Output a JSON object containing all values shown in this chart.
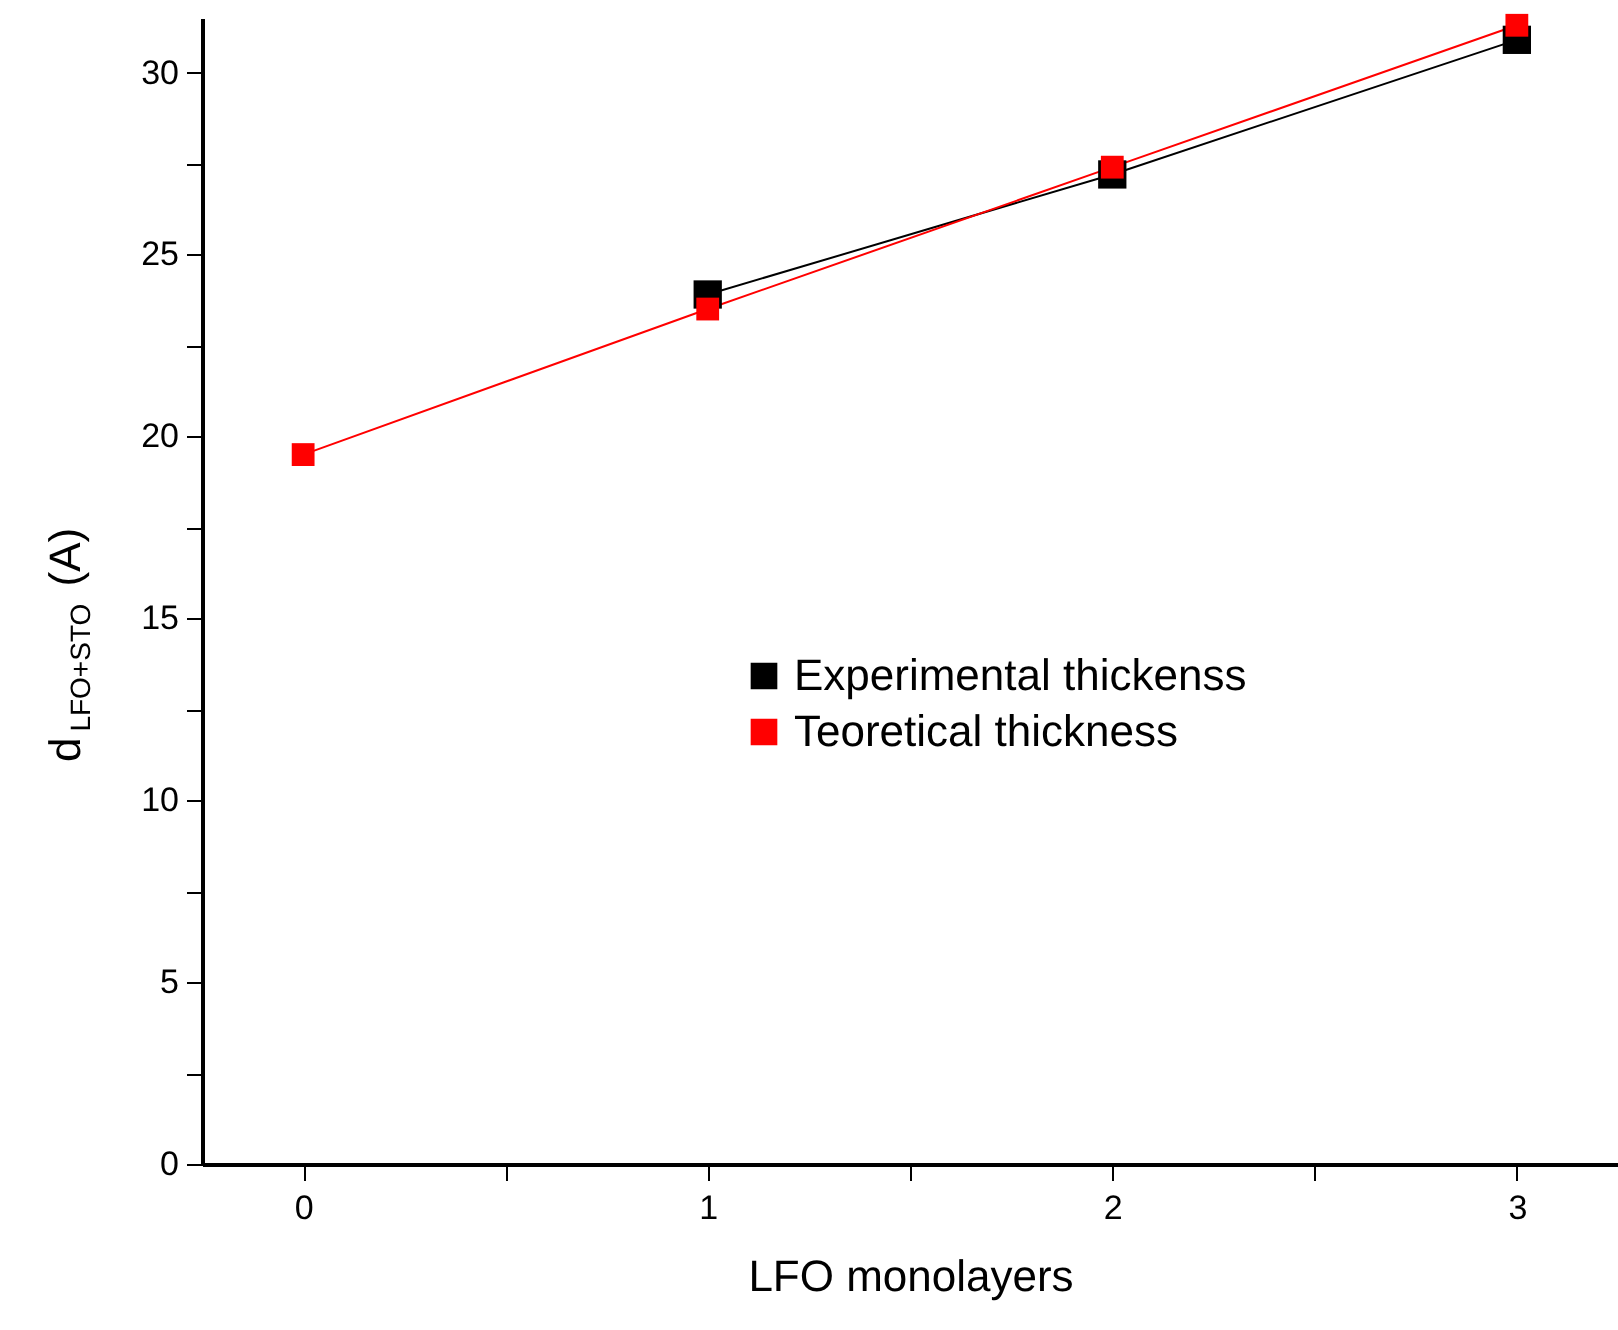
{
  "chart_data": {
    "type": "line",
    "xlabel": "LFO monolayers",
    "ylabel": "d$_{LFO+STO}$(A)",
    "series": [
      {
        "name": "Experimental thickenss",
        "color": "#000000",
        "x": [
          1,
          2,
          3
        ],
        "values": [
          23.9,
          27.2,
          30.9
        ]
      },
      {
        "name": "Teoretical thickness",
        "color": "#ff0000",
        "x": [
          0,
          1,
          2,
          3
        ],
        "values": [
          19.5,
          23.5,
          27.4,
          31.3
        ]
      }
    ],
    "xlim": [
      -0.25,
      3.25
    ],
    "xticks": [
      0,
      {
        "value": 0.5,
        "label": null
      },
      1,
      {
        "value": 1.5,
        "label": null
      },
      2,
      {
        "value": 2.5,
        "label": null
      },
      3
    ],
    "ylim": [
      0,
      31.5
    ],
    "yticks": [
      0,
      {
        "value": 2.5,
        "label": null
      },
      5,
      {
        "value": 7.5,
        "label": null
      },
      10,
      {
        "value": 12.5,
        "label": null
      },
      15,
      {
        "value": 17.5,
        "label": null
      },
      20,
      {
        "value": 22.5,
        "label": null
      },
      25,
      {
        "value": 27.5,
        "label": null
      },
      30
    ],
    "marker": "square",
    "line_style": "solid",
    "grid": false,
    "legend": "right"
  }
}
